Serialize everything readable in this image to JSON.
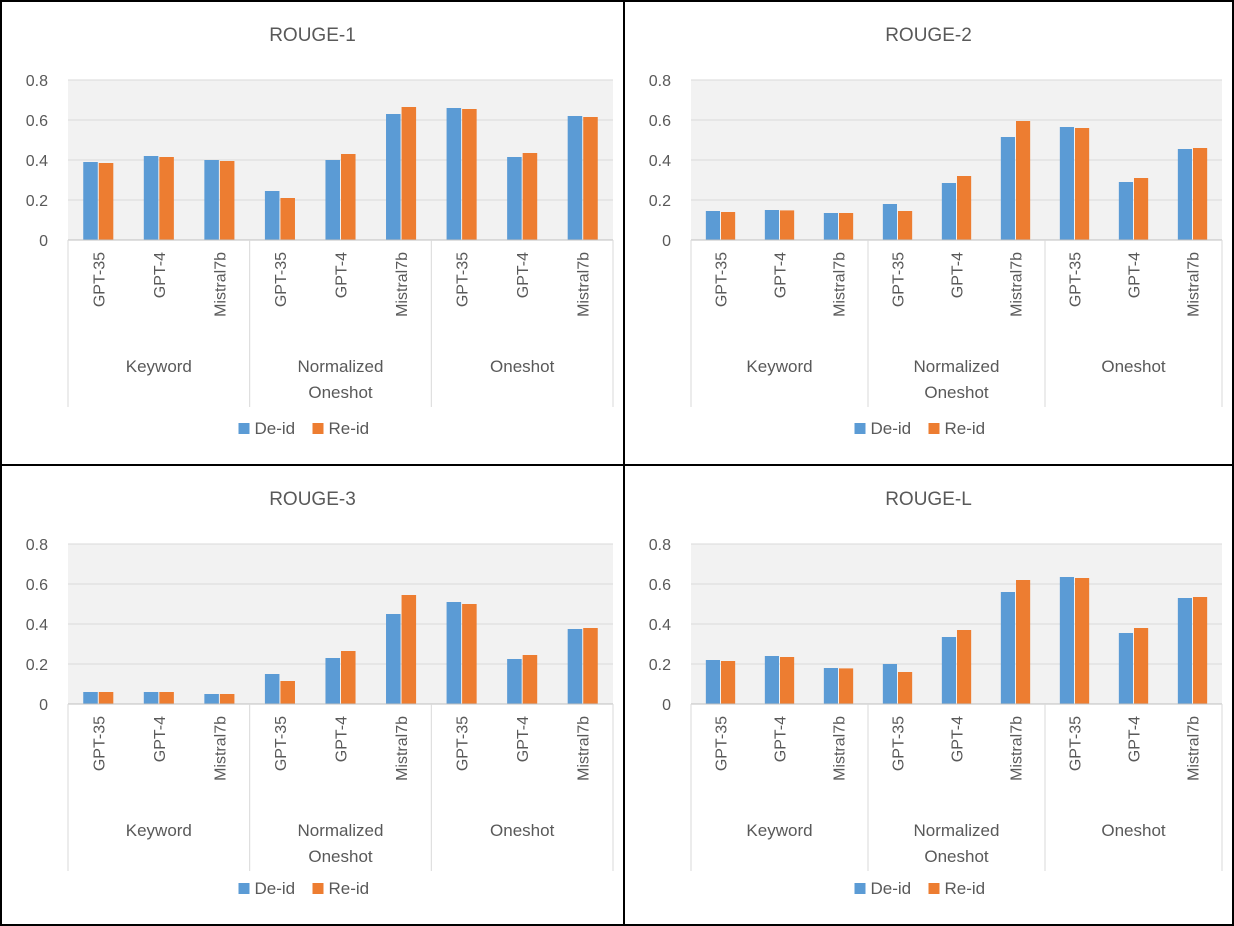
{
  "legend": [
    "De-id",
    "Re-id"
  ],
  "colors": {
    "de_id": "#5B9BD5",
    "re_id": "#ED7D31",
    "plot_bg": "#F2F2F2",
    "grid": "#D9D9D9",
    "axis": "#BFBFBF",
    "text": "#595959"
  },
  "chart_data": [
    {
      "type": "bar",
      "title": "ROUGE-1",
      "groups": [
        {
          "label": [
            "Keyword"
          ],
          "categories": [
            "GPT-35",
            "GPT-4",
            "Mistral7b"
          ]
        },
        {
          "label": [
            "Normalized",
            "Oneshot"
          ],
          "categories": [
            "GPT-35",
            "GPT-4",
            "Mistral7b"
          ]
        },
        {
          "label": [
            "Oneshot"
          ],
          "categories": [
            "GPT-35",
            "GPT-4",
            "Mistral7b"
          ]
        }
      ],
      "series": [
        {
          "name": "De-id",
          "values": [
            0.39,
            0.42,
            0.4,
            0.245,
            0.4,
            0.63,
            0.66,
            0.415,
            0.62
          ]
        },
        {
          "name": "Re-id",
          "values": [
            0.385,
            0.415,
            0.395,
            0.21,
            0.43,
            0.665,
            0.655,
            0.435,
            0.615
          ]
        }
      ],
      "ylim": [
        0,
        0.8
      ],
      "yticks": [
        "0",
        "0.2",
        "0.4",
        "0.6",
        "0.8"
      ],
      "legend_position": "bottom"
    },
    {
      "type": "bar",
      "title": "ROUGE-2",
      "groups": [
        {
          "label": [
            "Keyword"
          ],
          "categories": [
            "GPT-35",
            "GPT-4",
            "Mistral7b"
          ]
        },
        {
          "label": [
            "Normalized",
            "Oneshot"
          ],
          "categories": [
            "GPT-35",
            "GPT-4",
            "Mistral7b"
          ]
        },
        {
          "label": [
            "Oneshot"
          ],
          "categories": [
            "GPT-35",
            "GPT-4",
            "Mistral7b"
          ]
        }
      ],
      "series": [
        {
          "name": "De-id",
          "values": [
            0.145,
            0.15,
            0.135,
            0.18,
            0.285,
            0.515,
            0.565,
            0.29,
            0.455
          ]
        },
        {
          "name": "Re-id",
          "values": [
            0.14,
            0.148,
            0.135,
            0.145,
            0.32,
            0.595,
            0.56,
            0.31,
            0.46
          ]
        }
      ],
      "ylim": [
        0,
        0.8
      ],
      "yticks": [
        "0",
        "0.2",
        "0.4",
        "0.6",
        "0.8"
      ],
      "legend_position": "bottom"
    },
    {
      "type": "bar",
      "title": "ROUGE-3",
      "groups": [
        {
          "label": [
            "Keyword"
          ],
          "categories": [
            "GPT-35",
            "GPT-4",
            "Mistral7b"
          ]
        },
        {
          "label": [
            "Normalized",
            "Oneshot"
          ],
          "categories": [
            "GPT-35",
            "GPT-4",
            "Mistral7b"
          ]
        },
        {
          "label": [
            "Oneshot"
          ],
          "categories": [
            "GPT-35",
            "GPT-4",
            "Mistral7b"
          ]
        }
      ],
      "series": [
        {
          "name": "De-id",
          "values": [
            0.06,
            0.06,
            0.05,
            0.15,
            0.23,
            0.45,
            0.51,
            0.225,
            0.375
          ]
        },
        {
          "name": "Re-id",
          "values": [
            0.06,
            0.06,
            0.05,
            0.115,
            0.265,
            0.545,
            0.5,
            0.245,
            0.38
          ]
        }
      ],
      "ylim": [
        0,
        0.8
      ],
      "yticks": [
        "0",
        "0.2",
        "0.4",
        "0.6",
        "0.8"
      ],
      "legend_position": "bottom"
    },
    {
      "type": "bar",
      "title": "ROUGE-L",
      "groups": [
        {
          "label": [
            "Keyword"
          ],
          "categories": [
            "GPT-35",
            "GPT-4",
            "Mistral7b"
          ]
        },
        {
          "label": [
            "Normalized",
            "Oneshot"
          ],
          "categories": [
            "GPT-35",
            "GPT-4",
            "Mistral7b"
          ]
        },
        {
          "label": [
            "Oneshot"
          ],
          "categories": [
            "GPT-35",
            "GPT-4",
            "Mistral7b"
          ]
        }
      ],
      "series": [
        {
          "name": "De-id",
          "values": [
            0.22,
            0.24,
            0.18,
            0.2,
            0.335,
            0.56,
            0.635,
            0.355,
            0.53
          ]
        },
        {
          "name": "Re-id",
          "values": [
            0.215,
            0.235,
            0.178,
            0.16,
            0.37,
            0.62,
            0.63,
            0.38,
            0.535
          ]
        }
      ],
      "ylim": [
        0,
        0.8
      ],
      "yticks": [
        "0",
        "0.2",
        "0.4",
        "0.6",
        "0.8"
      ],
      "legend_position": "bottom"
    }
  ]
}
